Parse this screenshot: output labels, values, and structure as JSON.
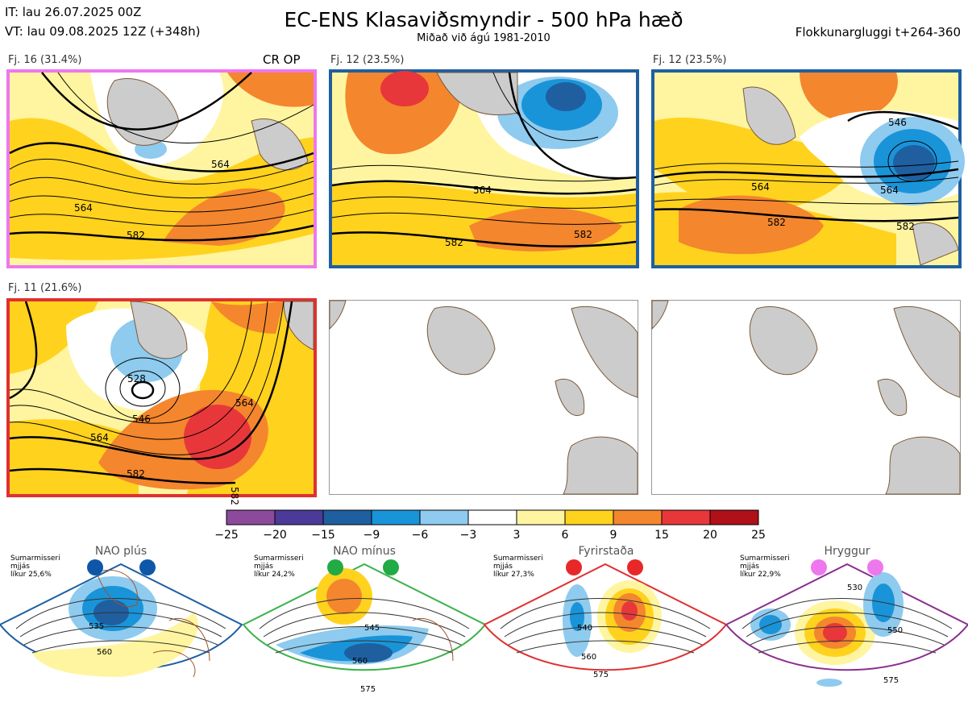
{
  "header": {
    "it": "IT: lau 26.07.2025 00Z",
    "vt": "VT: lau 09.08.2025 12Z  (+348h)",
    "title": "EC-ENS Klasaviðsmyndir - 500 hPa hæð",
    "subtitle": "Miðað við ágú 1981-2010",
    "window": "Flokkunargluggi t+264-360"
  },
  "panels": [
    {
      "label": "Fj. 16 (31.4%)",
      "border": "#ee77ee",
      "op_label": "CR OP",
      "contours": [
        "564",
        "564",
        "582"
      ]
    },
    {
      "label": "Fj. 12 (23.5%)",
      "border": "#1f5fa0",
      "contours": [
        "564",
        "582",
        "582"
      ]
    },
    {
      "label": "Fj. 12 (23.5%)",
      "border": "#1f5fa0",
      "contours": [
        "546",
        "564",
        "564",
        "582",
        "582"
      ]
    },
    {
      "label": "Fj. 11 (21.6%)",
      "border": "#e03030",
      "contours": [
        "528",
        "546",
        "564",
        "564",
        "582",
        "582"
      ]
    },
    {
      "label": "",
      "border": "#999999"
    },
    {
      "label": "",
      "border": "#999999"
    }
  ],
  "colorbar": {
    "labels": [
      "−25",
      "−20",
      "−15",
      "−9",
      "−6",
      "−3",
      "3",
      "6",
      "9",
      "15",
      "20",
      "25"
    ],
    "colors": [
      "#8b4a9c",
      "#4b3a9a",
      "#1f5fa0",
      "#1a94d8",
      "#8ecbef",
      "#ffffff",
      "#fff5a0",
      "#ffd21e",
      "#f4862e",
      "#e8373a",
      "#b01018"
    ]
  },
  "regimes": [
    {
      "name": "NAO plús",
      "note": [
        "Sumarmisseri",
        "mjjás",
        "líkur 25,6%"
      ],
      "frame": "#1f5fa0",
      "dots": [
        "#0e57a8",
        "#0e57a8"
      ],
      "labels": [
        "535",
        "560"
      ]
    },
    {
      "name": "NAO mínus",
      "note": [
        "Sumarmisseri",
        "mjjás",
        "líkur 24,2%"
      ],
      "frame": "#3ab24a",
      "dots": [
        "#22aa44",
        "#22aa44"
      ],
      "labels": [
        "545",
        "560",
        "575"
      ]
    },
    {
      "name": "Fyrirstaða",
      "note": [
        "Sumarmisseri",
        "mjjás",
        "líkur 27,3%"
      ],
      "frame": "#e03030",
      "dots": [
        "#e82828",
        "#e82828"
      ],
      "labels": [
        "540",
        "560",
        "575"
      ]
    },
    {
      "name": "Hryggur",
      "note": [
        "Sumarmisseri",
        "mjjás",
        "líkur 22,9%"
      ],
      "frame": "#8a2f8e",
      "dots": [
        "#ee77ee",
        "#ee77ee"
      ],
      "labels": [
        "530",
        "550",
        "575"
      ]
    }
  ]
}
